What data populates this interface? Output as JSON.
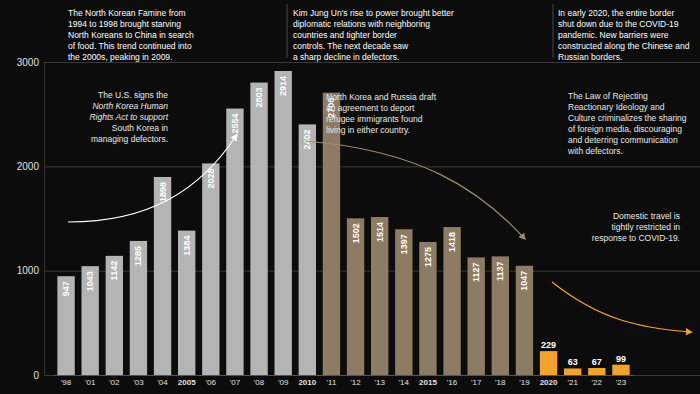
{
  "chart_data": {
    "type": "bar",
    "categories": [
      "'98",
      "'01",
      "'02",
      "'03",
      "'04",
      "2005",
      "'06",
      "'07",
      "'08",
      "'09",
      "2010",
      "'11",
      "'12",
      "'13",
      "'14",
      "2015",
      "'16",
      "'17",
      "'18",
      "'19",
      "2020",
      "'21",
      "'22",
      "'23"
    ],
    "values": [
      947,
      1043,
      1142,
      1285,
      1898,
      1384,
      2028,
      2554,
      2803,
      2914,
      2402,
      2706,
      1502,
      1514,
      1397,
      1275,
      1418,
      1127,
      1137,
      1047,
      229,
      63,
      67,
      99
    ],
    "colors": [
      "#b4b4b4",
      "#b4b4b4",
      "#b4b4b4",
      "#b4b4b4",
      "#b4b4b4",
      "#b4b4b4",
      "#b4b4b4",
      "#b4b4b4",
      "#b4b4b4",
      "#b4b4b4",
      "#b4b4b4",
      "#8d7c63",
      "#8d7c63",
      "#8d7c63",
      "#8d7c63",
      "#8d7c63",
      "#8d7c63",
      "#8d7c63",
      "#8d7c63",
      "#8d7c63",
      "#f2a22e",
      "#f2a22e",
      "#f2a22e",
      "#f2a22e"
    ],
    "ylim": [
      0,
      3000
    ],
    "yticks": [
      0,
      1000,
      2000,
      3000
    ],
    "grid": true,
    "data_labels": true,
    "annotations": [
      [
        "The North Korean Famine from",
        "1994 to 1998 brought starving",
        "North Koreans to China in search",
        "of food. This trend continued into",
        "the 2000s, peaking in 2009."
      ],
      [
        "The U.S. signs the",
        "North Korea Human",
        "Rights Act to support",
        "South Korea in",
        "managing defectors."
      ],
      [
        "Kim Jung Un's rise to power brought better",
        "diplomatic relations with neighboring",
        "countries and tighter border",
        "controls. The next decade saw",
        "a sharp decline in defectors."
      ],
      [
        "North Korea and Russia draft",
        "an agreement to deport",
        "refugee immigrants found",
        "living in either country."
      ],
      [
        "In early 2020, the entire border",
        "shut down due to the COVID-19",
        "pandemic. New barriers were",
        "constructed along the Chinese and",
        "Russian borders."
      ],
      [
        "The Law of Rejecting",
        "Reactionary Ideology and",
        "Culture criminalizes the sharing",
        "of foreign media, discouraging",
        "and deterring communication",
        "with defectors."
      ],
      [
        "Domestic travel is",
        "tightly restricted in",
        "response to COVID-19."
      ]
    ]
  }
}
